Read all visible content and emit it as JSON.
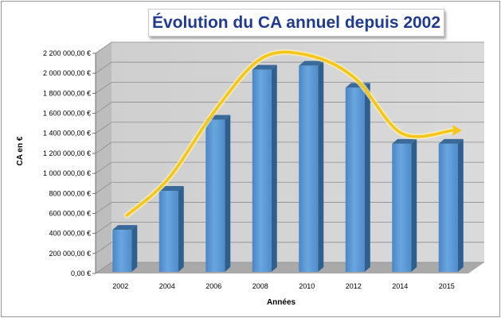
{
  "chart_data": {
    "type": "bar",
    "title": "Évolution du CA annuel depuis 2002",
    "xlabel": "Années",
    "ylabel": "CA en €",
    "categories": [
      "2002",
      "2004",
      "2006",
      "2008",
      "2010",
      "2012",
      "2014",
      "2015"
    ],
    "values": [
      420000,
      810000,
      1520000,
      2020000,
      2060000,
      1840000,
      1280000,
      1280000
    ],
    "ylim": [
      0,
      2200000
    ],
    "y_ticks": [
      {
        "value": 0,
        "label": "0,00 €"
      },
      {
        "value": 200000,
        "label": "200 000,00 €"
      },
      {
        "value": 400000,
        "label": "400 000,00 €"
      },
      {
        "value": 600000,
        "label": "600 000,00 €"
      },
      {
        "value": 800000,
        "label": "800 000,00 €"
      },
      {
        "value": 1000000,
        "label": "1 000 000,00 €"
      },
      {
        "value": 1200000,
        "label": "1 200 000,00 €"
      },
      {
        "value": 1400000,
        "label": "1 400 000,00 €"
      },
      {
        "value": 1600000,
        "label": "1 600 000,00 €"
      },
      {
        "value": 1800000,
        "label": "1 800 000,00 €"
      },
      {
        "value": 2000000,
        "label": "2 000 000,00 €"
      },
      {
        "value": 2200000,
        "label": "2 200 000,00 €"
      }
    ],
    "grid": true,
    "style": "3d-columns",
    "bar_color": "#5b9bd5",
    "trend_arrow_color": "#f5c518",
    "trend_curve_values": [
      580000,
      950000,
      1630000,
      2150000,
      2180000,
      1950000,
      1400000,
      1430000
    ]
  }
}
